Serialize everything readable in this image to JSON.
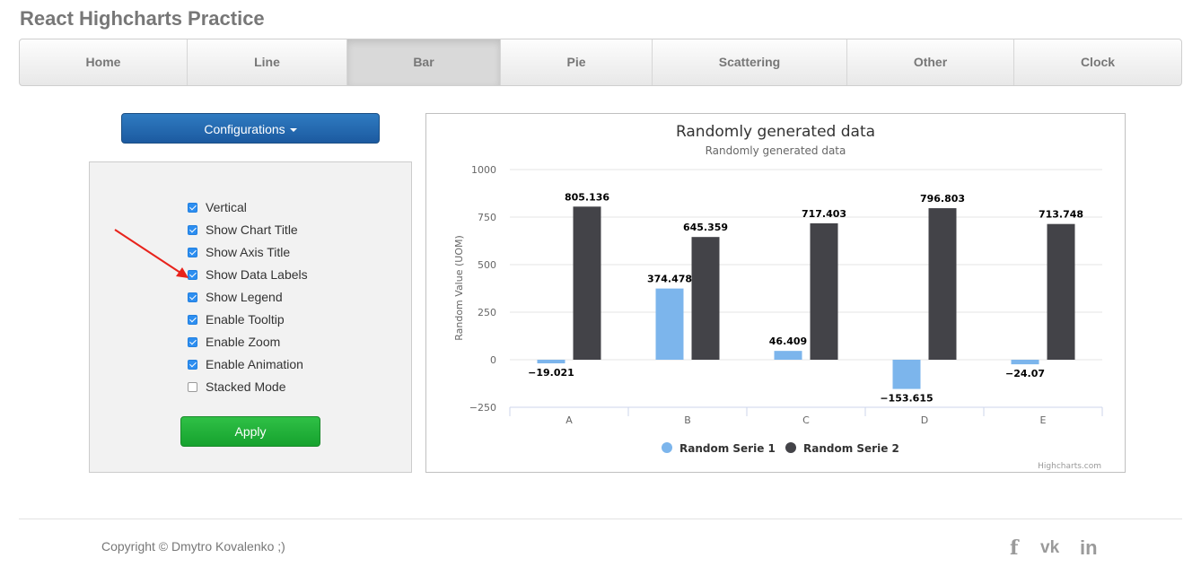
{
  "app": {
    "title": "React Highcharts Practice"
  },
  "nav": {
    "tabs": [
      {
        "label": "Home",
        "active": false
      },
      {
        "label": "Line",
        "active": false
      },
      {
        "label": "Bar",
        "active": true
      },
      {
        "label": "Pie",
        "active": false
      },
      {
        "label": "Scattering",
        "active": false
      },
      {
        "label": "Other",
        "active": false
      },
      {
        "label": "Clock",
        "active": false
      }
    ]
  },
  "config": {
    "button_label": "Configurations",
    "options": [
      {
        "label": "Vertical",
        "checked": true
      },
      {
        "label": "Show Chart Title",
        "checked": true
      },
      {
        "label": "Show Axis Title",
        "checked": true
      },
      {
        "label": "Show Data Labels",
        "checked": true
      },
      {
        "label": "Show Legend",
        "checked": true
      },
      {
        "label": "Enable Tooltip",
        "checked": true
      },
      {
        "label": "Enable Zoom",
        "checked": true
      },
      {
        "label": "Enable Animation",
        "checked": true
      },
      {
        "label": "Stacked Mode",
        "checked": false
      }
    ],
    "apply_label": "Apply"
  },
  "chart_data": {
    "type": "bar",
    "title": "Randomly generated data",
    "subtitle": "Randomly generated data",
    "xlabel": "",
    "ylabel": "Random Value (UOM)",
    "categories": [
      "A",
      "B",
      "C",
      "D",
      "E"
    ],
    "series": [
      {
        "name": "Random Serie 1",
        "color": "#7cb5ec",
        "values": [
          -19.021,
          374.478,
          46.409,
          -153.615,
          -24.07
        ]
      },
      {
        "name": "Random Serie 2",
        "color": "#434348",
        "values": [
          805.136,
          645.359,
          717.403,
          796.803,
          713.748
        ]
      }
    ],
    "ylim": [
      -250,
      1000
    ],
    "yticks": [
      -250,
      0,
      250,
      500,
      750,
      1000
    ],
    "grid": true,
    "data_labels": true,
    "legend": "bottom-center",
    "credits": "Highcharts.com"
  },
  "footer": {
    "copyright": "Copyright © Dmytro Kovalenko ;)",
    "social": [
      {
        "icon": "facebook-icon",
        "glyph": "f"
      },
      {
        "icon": "vk-icon",
        "glyph": "vk"
      },
      {
        "icon": "linkedin-icon",
        "glyph": "in"
      }
    ]
  }
}
